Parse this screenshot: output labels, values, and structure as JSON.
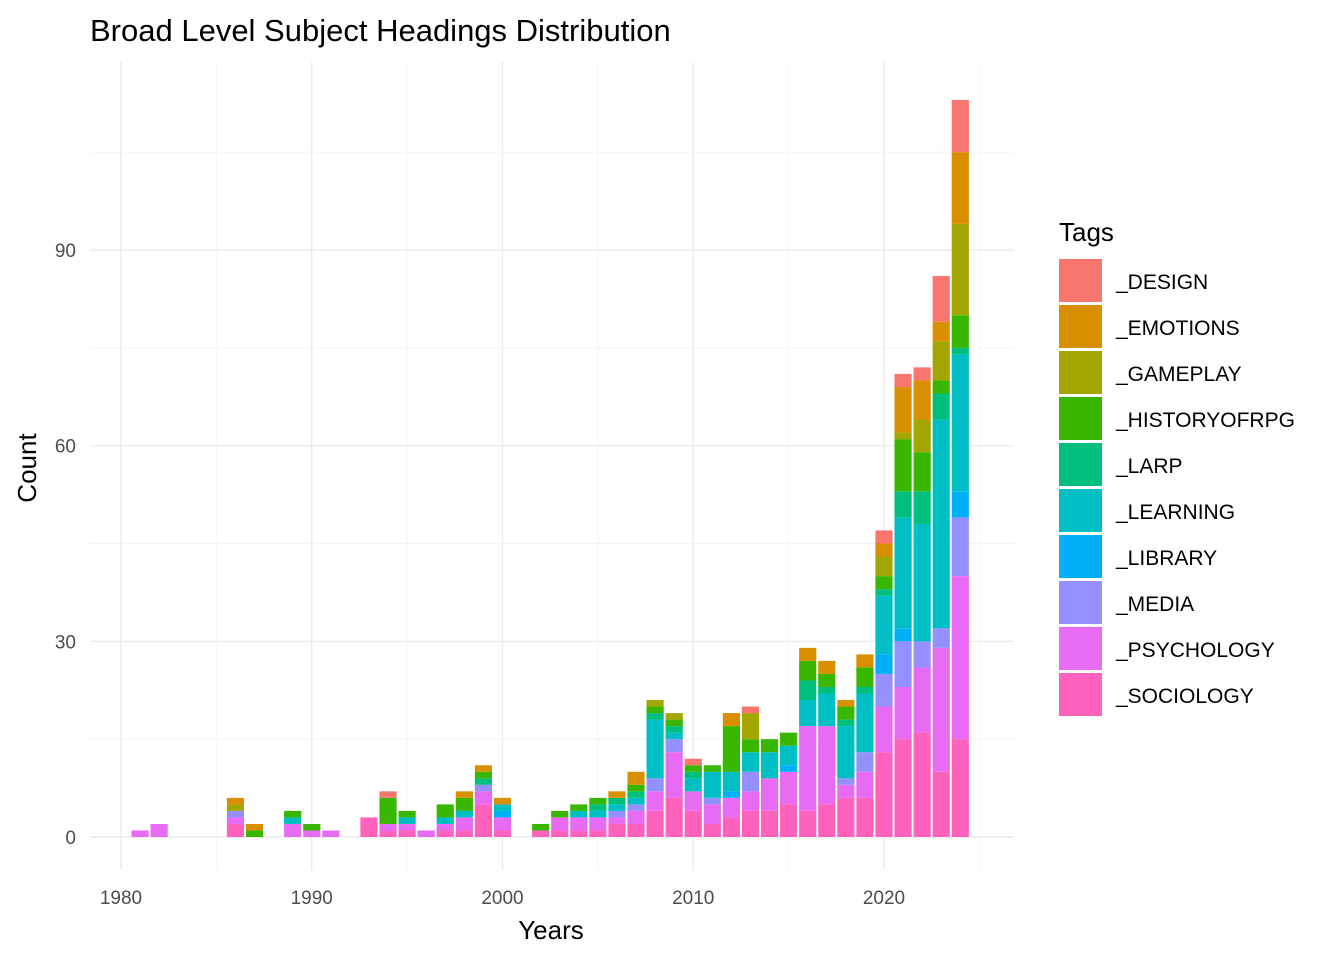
{
  "chart_data": {
    "type": "bar",
    "stacked": true,
    "title": "Broad Level Subject Headings Distribution",
    "xlabel": "Years",
    "ylabel": "Count",
    "xlim": [
      1978.2,
      1996.9
    ],
    "xlim_note": "",
    "x_range": [
      1978.4,
      2026.6
    ],
    "y_range": [
      -5,
      119
    ],
    "x_ticks": [
      1980,
      1990,
      2000,
      2010,
      2020
    ],
    "y_ticks": [
      0,
      30,
      60,
      90
    ],
    "grid": true,
    "legend": {
      "title": "Tags",
      "position": "right"
    },
    "series": [
      {
        "name": "_DESIGN",
        "color": "#F8766D"
      },
      {
        "name": "_EMOTIONS",
        "color": "#D89000"
      },
      {
        "name": "_GAMEPLAY",
        "color": "#A3A500"
      },
      {
        "name": "_HISTORYOFRPG",
        "color": "#39B600"
      },
      {
        "name": "_LARP",
        "color": "#00BF7D"
      },
      {
        "name": "_LEARNING",
        "color": "#00BFC4"
      },
      {
        "name": "_LIBRARY",
        "color": "#00B0F6"
      },
      {
        "name": "_MEDIA",
        "color": "#9590FF"
      },
      {
        "name": "_PSYCHOLOGY",
        "color": "#E76BF3"
      },
      {
        "name": "_SOCIOLOGY",
        "color": "#FF62BC"
      }
    ],
    "stack_order_bottom_to_top": [
      "_SOCIOLOGY",
      "_PSYCHOLOGY",
      "_MEDIA",
      "_LIBRARY",
      "_LEARNING",
      "_LARP",
      "_HISTORYOFRPG",
      "_GAMEPLAY",
      "_EMOTIONS",
      "_DESIGN"
    ],
    "bars": [
      {
        "x": 1981,
        "values": {
          "_PSYCHOLOGY": 1
        }
      },
      {
        "x": 1982,
        "values": {
          "_PSYCHOLOGY": 2
        }
      },
      {
        "x": 1986,
        "values": {
          "_SOCIOLOGY": 2,
          "_PSYCHOLOGY": 1,
          "_MEDIA": 1,
          "_GAMEPLAY": 1,
          "_EMOTIONS": 1
        }
      },
      {
        "x": 1987,
        "values": {
          "_HISTORYOFRPG": 1,
          "_EMOTIONS": 1
        }
      },
      {
        "x": 1989,
        "values": {
          "_PSYCHOLOGY": 2,
          "_LEARNING": 1,
          "_HISTORYOFRPG": 1
        }
      },
      {
        "x": 1990,
        "values": {
          "_PSYCHOLOGY": 1,
          "_HISTORYOFRPG": 1
        }
      },
      {
        "x": 1991,
        "values": {
          "_PSYCHOLOGY": 1
        }
      },
      {
        "x": 1993,
        "values": {
          "_SOCIOLOGY": 3
        }
      },
      {
        "x": 1994,
        "values": {
          "_SOCIOLOGY": 1,
          "_PSYCHOLOGY": 1,
          "_HISTORYOFRPG": 4,
          "_DESIGN": 1
        }
      },
      {
        "x": 1995,
        "values": {
          "_SOCIOLOGY": 1,
          "_PSYCHOLOGY": 1,
          "_LEARNING": 1,
          "_HISTORYOFRPG": 1
        }
      },
      {
        "x": 1996,
        "values": {
          "_PSYCHOLOGY": 1
        }
      },
      {
        "x": 1997,
        "values": {
          "_SOCIOLOGY": 1,
          "_PSYCHOLOGY": 1,
          "_LEARNING": 1,
          "_HISTORYOFRPG": 2
        }
      },
      {
        "x": 1998,
        "values": {
          "_SOCIOLOGY": 1,
          "_PSYCHOLOGY": 2,
          "_LEARNING": 1,
          "_HISTORYOFRPG": 2,
          "_EMOTIONS": 1
        }
      },
      {
        "x": 1999,
        "values": {
          "_SOCIOLOGY": 5,
          "_PSYCHOLOGY": 2,
          "_MEDIA": 1,
          "_LARP": 1,
          "_HISTORYOFRPG": 1,
          "_EMOTIONS": 1
        }
      },
      {
        "x": 2000,
        "values": {
          "_SOCIOLOGY": 1,
          "_PSYCHOLOGY": 2,
          "_LIBRARY": 1,
          "_LEARNING": 1,
          "_EMOTIONS": 1
        }
      },
      {
        "x": 2002,
        "values": {
          "_SOCIOLOGY": 1,
          "_HISTORYOFRPG": 1
        }
      },
      {
        "x": 2003,
        "values": {
          "_SOCIOLOGY": 1,
          "_PSYCHOLOGY": 2,
          "_HISTORYOFRPG": 1
        }
      },
      {
        "x": 2004,
        "values": {
          "_SOCIOLOGY": 1,
          "_PSYCHOLOGY": 2,
          "_LEARNING": 1,
          "_HISTORYOFRPG": 1
        }
      },
      {
        "x": 2005,
        "values": {
          "_SOCIOLOGY": 1,
          "_PSYCHOLOGY": 2,
          "_LEARNING": 1,
          "_LARP": 1,
          "_HISTORYOFRPG": 1
        }
      },
      {
        "x": 2006,
        "values": {
          "_SOCIOLOGY": 2,
          "_PSYCHOLOGY": 1,
          "_MEDIA": 1,
          "_LEARNING": 1,
          "_LARP": 1,
          "_EMOTIONS": 1
        }
      },
      {
        "x": 2007,
        "values": {
          "_SOCIOLOGY": 2,
          "_PSYCHOLOGY": 2,
          "_MEDIA": 1,
          "_LEARNING": 1,
          "_LARP": 1,
          "_HISTORYOFRPG": 1,
          "_EMOTIONS": 2
        }
      },
      {
        "x": 2008,
        "values": {
          "_SOCIOLOGY": 4,
          "_PSYCHOLOGY": 3,
          "_MEDIA": 2,
          "_LEARNING": 9,
          "_LARP": 1,
          "_HISTORYOFRPG": 1,
          "_GAMEPLAY": 1
        }
      },
      {
        "x": 2009,
        "values": {
          "_SOCIOLOGY": 6,
          "_PSYCHOLOGY": 7,
          "_MEDIA": 2,
          "_LEARNING": 1,
          "_LARP": 1,
          "_HISTORYOFRPG": 1,
          "_GAMEPLAY": 1
        }
      },
      {
        "x": 2010,
        "values": {
          "_SOCIOLOGY": 4,
          "_PSYCHOLOGY": 3,
          "_LEARNING": 2,
          "_LARP": 1,
          "_HISTORYOFRPG": 1,
          "_DESIGN": 1
        }
      },
      {
        "x": 2011,
        "values": {
          "_SOCIOLOGY": 2,
          "_PSYCHOLOGY": 3,
          "_MEDIA": 1,
          "_LEARNING": 4,
          "_HISTORYOFRPG": 1
        }
      },
      {
        "x": 2012,
        "values": {
          "_SOCIOLOGY": 3,
          "_PSYCHOLOGY": 3,
          "_LIBRARY": 1,
          "_LEARNING": 3,
          "_HISTORYOFRPG": 7,
          "_EMOTIONS": 2
        }
      },
      {
        "x": 2013,
        "values": {
          "_SOCIOLOGY": 4,
          "_PSYCHOLOGY": 3,
          "_MEDIA": 3,
          "_LEARNING": 3,
          "_HISTORYOFRPG": 2,
          "_GAMEPLAY": 4,
          "_DESIGN": 1
        }
      },
      {
        "x": 2014,
        "values": {
          "_SOCIOLOGY": 4,
          "_PSYCHOLOGY": 5,
          "_LEARNING": 4,
          "_HISTORYOFRPG": 2
        }
      },
      {
        "x": 2015,
        "values": {
          "_SOCIOLOGY": 5,
          "_PSYCHOLOGY": 5,
          "_LIBRARY": 1,
          "_LEARNING": 3,
          "_HISTORYOFRPG": 2
        }
      },
      {
        "x": 2016,
        "values": {
          "_SOCIOLOGY": 4,
          "_PSYCHOLOGY": 13,
          "_LEARNING": 4,
          "_LARP": 3,
          "_HISTORYOFRPG": 3,
          "_EMOTIONS": 2
        }
      },
      {
        "x": 2017,
        "values": {
          "_SOCIOLOGY": 5,
          "_PSYCHOLOGY": 12,
          "_LEARNING": 5,
          "_LARP": 1,
          "_HISTORYOFRPG": 2,
          "_EMOTIONS": 2
        }
      },
      {
        "x": 2018,
        "values": {
          "_SOCIOLOGY": 6,
          "_PSYCHOLOGY": 2,
          "_MEDIA": 1,
          "_LEARNING": 8,
          "_LARP": 1,
          "_HISTORYOFRPG": 2,
          "_EMOTIONS": 1
        }
      },
      {
        "x": 2019,
        "values": {
          "_SOCIOLOGY": 6,
          "_PSYCHOLOGY": 4,
          "_MEDIA": 3,
          "_LEARNING": 9,
          "_LARP": 1,
          "_HISTORYOFRPG": 3,
          "_EMOTIONS": 2
        }
      },
      {
        "x": 2020,
        "values": {
          "_SOCIOLOGY": 13,
          "_PSYCHOLOGY": 7,
          "_MEDIA": 5,
          "_LIBRARY": 3,
          "_LEARNING": 9,
          "_LARP": 1,
          "_HISTORYOFRPG": 2,
          "_GAMEPLAY": 3,
          "_EMOTIONS": 2,
          "_DESIGN": 2
        }
      },
      {
        "x": 2021,
        "values": {
          "_SOCIOLOGY": 15,
          "_PSYCHOLOGY": 8,
          "_MEDIA": 7,
          "_LIBRARY": 2,
          "_LEARNING": 17,
          "_LARP": 4,
          "_HISTORYOFRPG": 8,
          "_GAMEPLAY": 1,
          "_EMOTIONS": 7,
          "_DESIGN": 2
        }
      },
      {
        "x": 2022,
        "values": {
          "_SOCIOLOGY": 16,
          "_PSYCHOLOGY": 10,
          "_MEDIA": 4,
          "_LEARNING": 18,
          "_LARP": 5,
          "_HISTORYOFRPG": 6,
          "_GAMEPLAY": 5,
          "_EMOTIONS": 6,
          "_DESIGN": 2
        }
      },
      {
        "x": 2023,
        "values": {
          "_SOCIOLOGY": 10,
          "_PSYCHOLOGY": 19,
          "_MEDIA": 3,
          "_LEARNING": 32,
          "_LARP": 4,
          "_HISTORYOFRPG": 2,
          "_GAMEPLAY": 6,
          "_EMOTIONS": 3,
          "_DESIGN": 7
        }
      },
      {
        "x": 2024,
        "values": {
          "_SOCIOLOGY": 15,
          "_PSYCHOLOGY": 25,
          "_MEDIA": 9,
          "_LIBRARY": 4,
          "_LEARNING": 21,
          "_LARP": 1,
          "_HISTORYOFRPG": 5,
          "_GAMEPLAY": 14,
          "_EMOTIONS": 11,
          "_DESIGN": 8
        }
      }
    ]
  }
}
